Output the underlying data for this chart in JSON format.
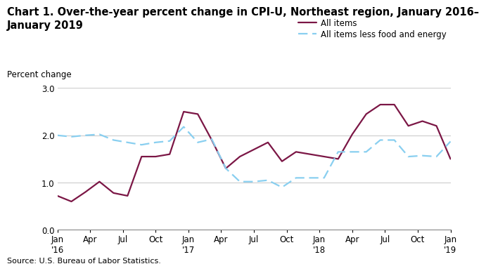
{
  "title": "Chart 1. Over-the-year percent change in CPI-U, Northeast region, January 2016–\nJanuary 2019",
  "ylabel_text": "Percent change",
  "source": "Source: U.S. Bureau of Labor Statistics.",
  "ylim": [
    0.0,
    3.0
  ],
  "yticks": [
    0.0,
    1.0,
    2.0,
    3.0
  ],
  "legend_labels": [
    "All items",
    "All items less food and energy"
  ],
  "all_items": [
    0.72,
    0.6,
    0.8,
    1.02,
    0.78,
    0.72,
    1.55,
    1.55,
    1.6,
    2.5,
    2.45,
    1.9,
    1.3,
    1.55,
    1.7,
    1.85,
    1.45,
    1.65,
    1.6,
    1.55,
    1.5,
    2.02,
    2.45,
    2.65,
    2.65,
    2.2,
    2.3,
    2.2,
    1.5
  ],
  "all_items_core": [
    2.0,
    1.97,
    2.0,
    2.02,
    1.9,
    1.85,
    1.8,
    1.85,
    1.88,
    2.18,
    1.85,
    1.92,
    1.3,
    1.02,
    1.02,
    1.05,
    0.9,
    1.1,
    1.1,
    1.1,
    1.65,
    1.65,
    1.65,
    1.9,
    1.9,
    1.55,
    1.57,
    1.55,
    1.87
  ],
  "all_items_color": "#7B1645",
  "all_items_core_color": "#89CFF0",
  "background_color": "#ffffff",
  "grid_color": "#cccccc",
  "title_fontsize": 10.5,
  "axis_label_fontsize": 8.5,
  "tick_fontsize": 8.5,
  "legend_fontsize": 8.5
}
